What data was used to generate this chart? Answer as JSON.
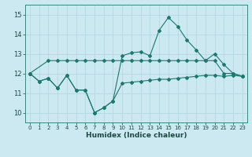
{
  "xlabel": "Humidex (Indice chaleur)",
  "bg_color": "#cce8f0",
  "grid_color": "#b0d4de",
  "line_color": "#1a7a6e",
  "xlim": [
    -0.5,
    23.5
  ],
  "ylim": [
    9.5,
    15.5
  ],
  "yticks": [
    10,
    11,
    12,
    13,
    14,
    15
  ],
  "xticks": [
    0,
    1,
    2,
    3,
    4,
    5,
    6,
    7,
    8,
    9,
    10,
    11,
    12,
    13,
    14,
    15,
    16,
    17,
    18,
    19,
    20,
    21,
    22,
    23
  ],
  "curve1_x": [
    0,
    1,
    2,
    3,
    4,
    5,
    6,
    7,
    8,
    9,
    10,
    11,
    12,
    13,
    14,
    15,
    16,
    17,
    18,
    19,
    20,
    21,
    22,
    23
  ],
  "curve1_y": [
    12.0,
    11.6,
    11.75,
    11.25,
    11.9,
    11.15,
    11.15,
    10.0,
    10.25,
    10.6,
    11.5,
    11.55,
    11.6,
    11.65,
    11.7,
    11.7,
    11.75,
    11.8,
    11.85,
    11.9,
    11.9,
    11.85,
    11.9,
    11.85
  ],
  "curve2_x": [
    0,
    2,
    3,
    4,
    5,
    6,
    7,
    8,
    9,
    10,
    11,
    12,
    13,
    14,
    15,
    16,
    17,
    18,
    19,
    20,
    21,
    22,
    23
  ],
  "curve2_y": [
    12.0,
    12.65,
    12.65,
    12.65,
    12.65,
    12.65,
    12.65,
    12.65,
    12.65,
    12.65,
    12.65,
    12.65,
    12.65,
    12.65,
    12.65,
    12.65,
    12.65,
    12.65,
    12.65,
    12.65,
    12.0,
    12.0,
    11.85
  ],
  "curve3_x": [
    0,
    1,
    2,
    3,
    4,
    5,
    6,
    7,
    8,
    9,
    10,
    11,
    12,
    13,
    14,
    15,
    16,
    17,
    18,
    19,
    20,
    21,
    22,
    23
  ],
  "curve3_y": [
    12.0,
    11.6,
    11.75,
    11.25,
    11.9,
    11.15,
    11.15,
    10.0,
    10.25,
    10.6,
    12.9,
    13.05,
    13.1,
    12.9,
    14.2,
    14.85,
    14.4,
    13.7,
    13.2,
    12.65,
    13.0,
    12.45,
    12.0,
    11.85
  ]
}
